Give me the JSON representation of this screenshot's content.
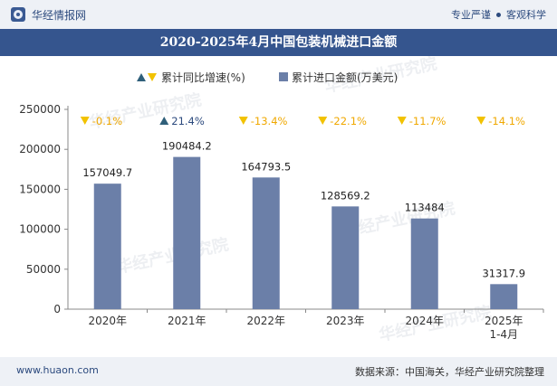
{
  "header": {
    "brand": "华经情报网",
    "slogan_left": "专业严谨",
    "slogan_right": "客观科学"
  },
  "watermark": "华经产业研究院",
  "footer": {
    "site": "www.huaon.com",
    "source": "数据来源：中国海关，华经产业研究院整理"
  },
  "colors": {
    "bar": "#6b7fa8",
    "up_marker": "#2f5f7a",
    "down_marker": "#f2c200",
    "down_text": "#f0a800",
    "up_text": "#2c4a7e"
  },
  "chart_data": {
    "type": "bar",
    "title": "2020-2025年4月中国包装机械进口金额",
    "categories": [
      "2020年",
      "2021年",
      "2022年",
      "2023年",
      "2024年",
      "2025年\n1-4月"
    ],
    "series": [
      {
        "name": "累计进口金额(万美元)",
        "values": [
          157049.7,
          190484.2,
          164793.5,
          128569.2,
          113484,
          31317.9
        ],
        "labels": [
          "157049.7",
          "190484.2",
          "164793.5",
          "128569.2",
          "113484",
          "31317.9"
        ]
      },
      {
        "name": "累计同比增速(%)",
        "values": [
          -0.1,
          21.4,
          -13.4,
          -22.1,
          -11.7,
          -14.1
        ],
        "labels": [
          "-0.1%",
          "21.4%",
          "-13.4%",
          "-22.1%",
          "-11.7%",
          "-14.1%"
        ]
      }
    ],
    "ylim": [
      0,
      250000
    ],
    "yticks": [
      0,
      50000,
      100000,
      150000,
      200000,
      250000
    ],
    "ytick_labels": [
      "0",
      "50000",
      "100000",
      "150000",
      "200000",
      "250000"
    ],
    "legend_position": "top-center",
    "grid": false
  }
}
